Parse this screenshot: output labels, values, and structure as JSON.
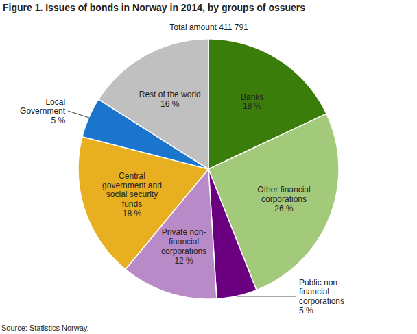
{
  "chart_data": {
    "type": "pie",
    "title": "Figure 1. Issues of bonds in Norway in 2014, by groups of ossuers",
    "subtitle": "Total amount 411 791",
    "caption": "Source: Statistics Norway.",
    "categories": [
      "Banks",
      "Other financial corporations",
      "Public non-financial corporations",
      "Private non-financial corporations",
      "Central government and social security funds",
      "Local Government",
      "Rest of the world"
    ],
    "values": [
      18,
      26,
      5,
      12,
      18,
      5,
      16
    ],
    "value_labels": [
      "18 %",
      "26 %",
      "5 %",
      "12 %",
      "18 %",
      "5 %",
      "16 %"
    ],
    "colors": [
      "#3a7d0a",
      "#a3c97a",
      "#6a0080",
      "#b98ac8",
      "#e8b021",
      "#1c75cc",
      "#c0c0c0"
    ],
    "data_labels": true,
    "tick_labels": false
  }
}
